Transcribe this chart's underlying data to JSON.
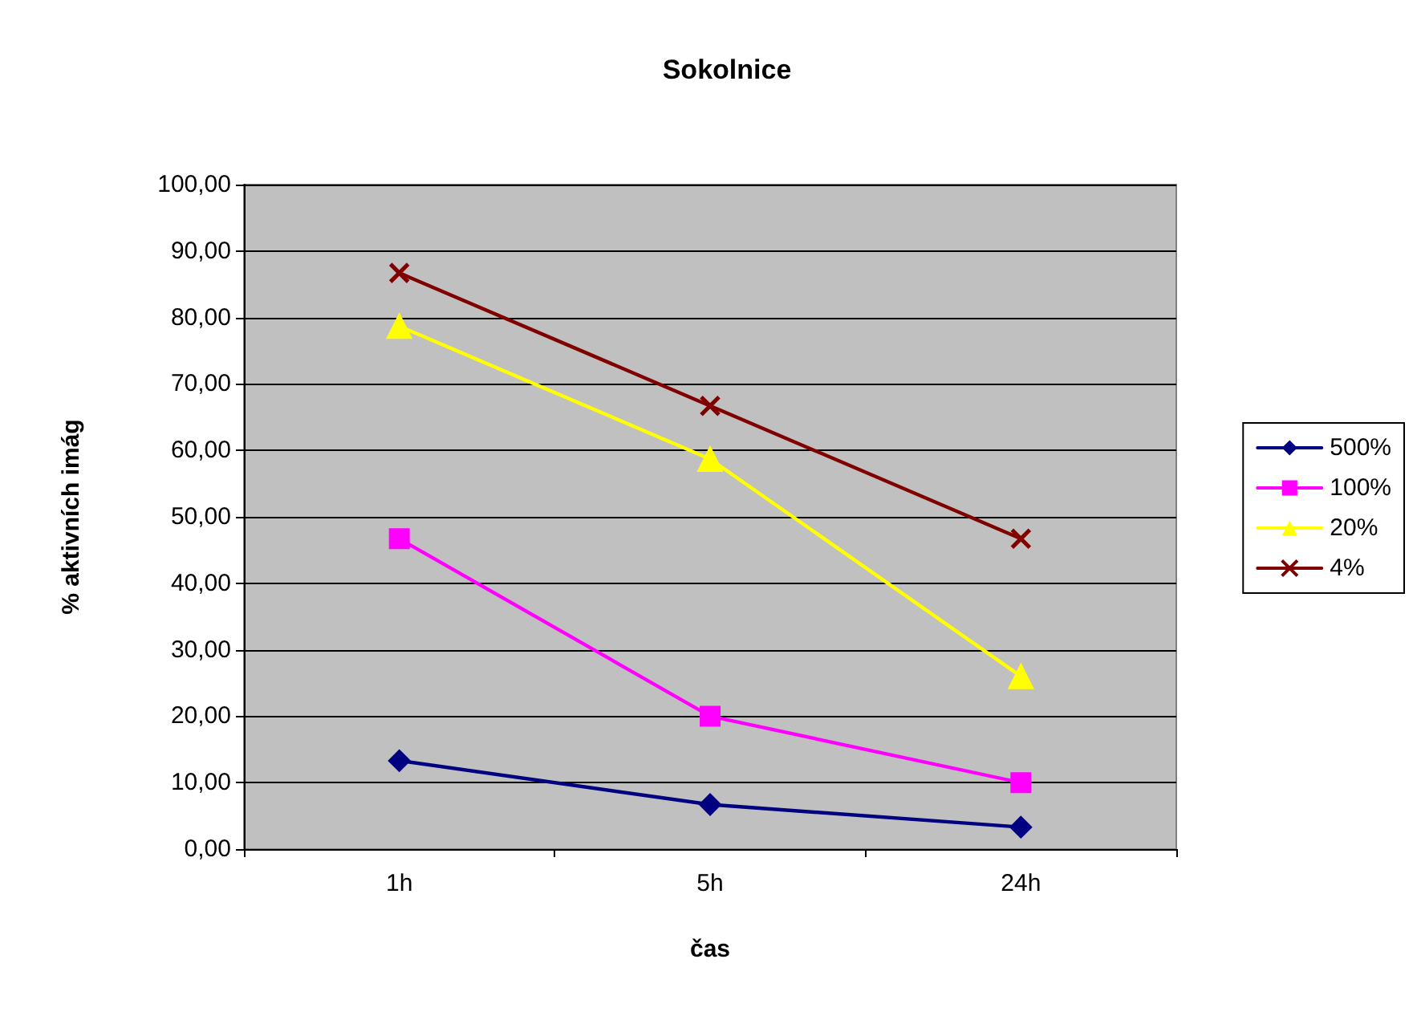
{
  "chart_data": {
    "type": "line",
    "title": "Sokolnice",
    "xlabel": "čas",
    "ylabel": "% aktivních imág",
    "categories": [
      "1h",
      "5h",
      "24h"
    ],
    "series": [
      {
        "name": "500%",
        "color": "#000080",
        "marker": "diamond",
        "values": [
          13.3,
          6.7,
          3.3
        ]
      },
      {
        "name": "100%",
        "color": "#ff00ff",
        "marker": "square",
        "values": [
          46.7,
          20.0,
          10.0
        ]
      },
      {
        "name": "20%",
        "color": "#ffff00",
        "marker": "triangle",
        "values": [
          78.7,
          58.7,
          26.0
        ]
      },
      {
        "name": "4%",
        "color": "#800000",
        "marker": "cross",
        "values": [
          86.7,
          66.7,
          46.7
        ]
      }
    ],
    "ylim": [
      0,
      100
    ],
    "yticks": [
      {
        "value": 0,
        "label": "0,00"
      },
      {
        "value": 10,
        "label": "10,00"
      },
      {
        "value": 20,
        "label": "20,00"
      },
      {
        "value": 30,
        "label": "30,00"
      },
      {
        "value": 40,
        "label": "40,00"
      },
      {
        "value": 50,
        "label": "50,00"
      },
      {
        "value": 60,
        "label": "60,00"
      },
      {
        "value": 70,
        "label": "70,00"
      },
      {
        "value": 80,
        "label": "80,00"
      },
      {
        "value": 90,
        "label": "90,00"
      },
      {
        "value": 100,
        "label": "100,00"
      }
    ],
    "grid": "y",
    "legend": "right",
    "line_style": "solid"
  }
}
